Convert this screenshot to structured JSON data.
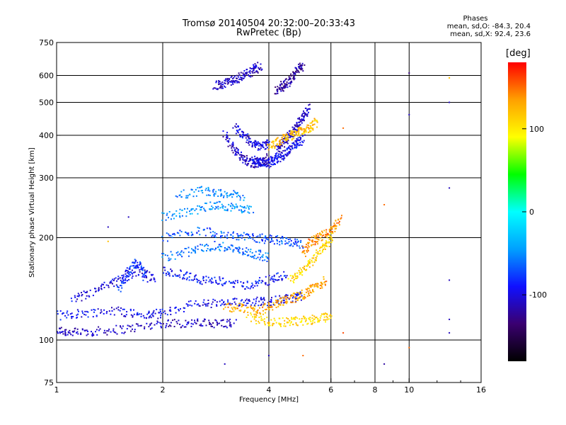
{
  "header": {
    "title_line1": "Tromsø 20140504 20:32:00–20:33:43",
    "title_line2": "RwPretec (Bp)"
  },
  "phases_box": {
    "title": "Phases",
    "line1": "mean, sd,O: -84.3, 20.4",
    "line2": "mean, sd,X:  92.4, 23.6"
  },
  "colorbar": {
    "unit": "[deg]",
    "ticks": [
      {
        "value": 100,
        "label": "100"
      },
      {
        "value": 0,
        "label": "0"
      },
      {
        "value": -100,
        "label": "-100"
      }
    ],
    "range": [
      -180,
      180
    ],
    "colors": [
      "#000000",
      "#3a0070",
      "#1010ff",
      "#00a0ff",
      "#00ffff",
      "#00ff00",
      "#ffff00",
      "#ffa000",
      "#ff0000"
    ]
  },
  "chart_data": {
    "type": "scatter",
    "title": "Tromsø 20140504 20:32:00–20:33:43",
    "subtitle": "RwPretec (Bp)",
    "xlabel": "Frequency [MHz]",
    "ylabel": "Stationary phase Virtual Height [km]",
    "xscale": "log",
    "yscale": "log",
    "xlim": [
      1,
      16
    ],
    "ylim": [
      75,
      750
    ],
    "xticks": [
      1,
      2,
      4,
      6,
      8,
      10,
      16
    ],
    "yticks": [
      75,
      100,
      200,
      300,
      400,
      500,
      600,
      750
    ],
    "x_gridlines": [
      2,
      4,
      6,
      8,
      10
    ],
    "y_gridlines": [
      100,
      200,
      300,
      400,
      500,
      600
    ],
    "grid": true,
    "color_encoding": "phase [deg]",
    "traces": [
      {
        "x": [
          1.0,
          1.1,
          1.3,
          1.6,
          2.0,
          2.4,
          2.8,
          3.2
        ],
        "y": [
          107,
          105,
          106,
          108,
          112,
          112,
          112,
          112
        ],
        "phase": -110
      },
      {
        "x": [
          1.0,
          1.2,
          1.5,
          1.8,
          2.0,
          2.5,
          3.0,
          3.5,
          4.0,
          4.5,
          5.0
        ],
        "y": [
          118,
          120,
          122,
          118,
          120,
          128,
          128,
          130,
          130,
          132,
          135
        ],
        "phase": -95
      },
      {
        "x": [
          3.5,
          4.0,
          4.5,
          5.0,
          5.5,
          6.0
        ],
        "y": [
          117,
          113,
          113,
          114,
          115,
          118
        ],
        "phase": 110
      },
      {
        "x": [
          3.0,
          3.4,
          3.8,
          4.2,
          4.6,
          5.0,
          5.4,
          5.8
        ],
        "y": [
          125,
          124,
          122,
          128,
          132,
          136,
          142,
          150
        ],
        "phase": 130
      },
      {
        "x": [
          1.1,
          1.3,
          1.5,
          1.7,
          1.9
        ],
        "y": [
          130,
          140,
          150,
          160,
          150
        ],
        "phase": -100
      },
      {
        "x": [
          1.5,
          1.6,
          1.7,
          1.8
        ],
        "y": [
          140,
          160,
          170,
          150
        ],
        "phase": -80
      },
      {
        "x": [
          2.0,
          2.3,
          2.6,
          3.0,
          3.5,
          4.0,
          4.5
        ],
        "y": [
          160,
          155,
          150,
          148,
          145,
          150,
          155
        ],
        "phase": -90
      },
      {
        "x": [
          2.0,
          2.4,
          2.8,
          3.2,
          3.6,
          4.0
        ],
        "y": [
          175,
          182,
          190,
          185,
          180,
          175
        ],
        "phase": -60
      },
      {
        "x": [
          2.0,
          2.5,
          3.0,
          3.5,
          4.0,
          4.5,
          5.0
        ],
        "y": [
          200,
          210,
          205,
          200,
          198,
          196,
          190
        ],
        "phase": -70
      },
      {
        "x": [
          2.0,
          2.4,
          2.8,
          3.2,
          3.6
        ],
        "y": [
          230,
          240,
          250,
          245,
          240
        ],
        "phase": -50
      },
      {
        "x": [
          2.2,
          2.6,
          3.0,
          3.4
        ],
        "y": [
          265,
          275,
          270,
          265
        ],
        "phase": -55
      },
      {
        "x": [
          4.6,
          5.0,
          5.4,
          5.8,
          6.0
        ],
        "y": [
          150,
          160,
          175,
          190,
          200
        ],
        "phase": 110
      },
      {
        "x": [
          5.0,
          5.3,
          5.6,
          6.0,
          6.4
        ],
        "y": [
          180,
          195,
          200,
          210,
          230
        ],
        "phase": 140
      },
      {
        "x": [
          3.0,
          3.2,
          3.4,
          3.6,
          3.8,
          4.0
        ],
        "y": [
          400,
          360,
          340,
          330,
          335,
          345
        ],
        "phase": -110
      },
      {
        "x": [
          3.2,
          3.4,
          3.6,
          3.8,
          4.0
        ],
        "y": [
          420,
          400,
          380,
          370,
          380
        ],
        "phase": -100
      },
      {
        "x": [
          3.6,
          3.8,
          4.0,
          4.2,
          4.4,
          4.6,
          4.8,
          5.0
        ],
        "y": [
          340,
          335,
          330,
          340,
          350,
          365,
          380,
          390
        ],
        "phase": -95
      },
      {
        "x": [
          4.2,
          4.4,
          4.6,
          4.8,
          5.0,
          5.2
        ],
        "y": [
          360,
          380,
          400,
          420,
          450,
          480
        ],
        "phase": -110
      },
      {
        "x": [
          4.0,
          4.3,
          4.6,
          4.9,
          5.2,
          5.5
        ],
        "y": [
          370,
          385,
          400,
          410,
          420,
          440
        ],
        "phase": 120
      },
      {
        "x": [
          2.8,
          3.0,
          3.2,
          3.4,
          3.6,
          3.8
        ],
        "y": [
          560,
          570,
          580,
          600,
          620,
          640
        ],
        "phase": -110
      },
      {
        "x": [
          4.2,
          4.4,
          4.6,
          4.8,
          5.0
        ],
        "y": [
          540,
          560,
          580,
          620,
          640
        ],
        "phase": -120
      }
    ],
    "sparse_points": [
      {
        "x": 13.0,
        "y": 590,
        "phase": 120
      },
      {
        "x": 13.0,
        "y": 500,
        "phase": -110
      },
      {
        "x": 13.0,
        "y": 280,
        "phase": -110
      },
      {
        "x": 13.0,
        "y": 150,
        "phase": -110
      },
      {
        "x": 13.0,
        "y": 115,
        "phase": -110
      },
      {
        "x": 13.0,
        "y": 105,
        "phase": -110
      },
      {
        "x": 10.0,
        "y": 460,
        "phase": -110
      },
      {
        "x": 10.0,
        "y": 610,
        "phase": -130
      },
      {
        "x": 10.0,
        "y": 95,
        "phase": 150
      },
      {
        "x": 8.5,
        "y": 85,
        "phase": -120
      },
      {
        "x": 8.5,
        "y": 250,
        "phase": 150
      },
      {
        "x": 6.5,
        "y": 420,
        "phase": 150
      },
      {
        "x": 6.5,
        "y": 105,
        "phase": 160
      },
      {
        "x": 5.0,
        "y": 90,
        "phase": 150
      },
      {
        "x": 4.0,
        "y": 90,
        "phase": -110
      },
      {
        "x": 3.0,
        "y": 85,
        "phase": -110
      },
      {
        "x": 1.4,
        "y": 215,
        "phase": -110
      },
      {
        "x": 1.4,
        "y": 195,
        "phase": 120
      },
      {
        "x": 1.6,
        "y": 230,
        "phase": -110
      }
    ]
  }
}
